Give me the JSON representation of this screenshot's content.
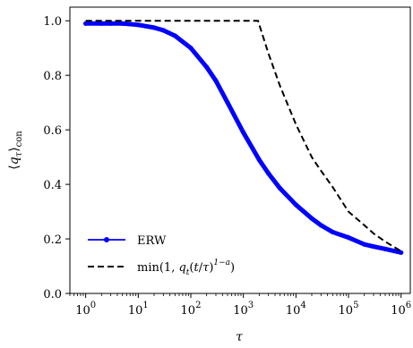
{
  "chart_data": {
    "type": "line",
    "xlabel": "τ",
    "ylabel": "⟨q_τ⟩_con",
    "xscale": "log",
    "xlim": [
      0.5,
      1500000
    ],
    "ylim": [
      0.0,
      1.05
    ],
    "x_ticks": [
      {
        "value": 1,
        "base": "10",
        "exp": "0"
      },
      {
        "value": 10,
        "base": "10",
        "exp": "1"
      },
      {
        "value": 100,
        "base": "10",
        "exp": "2"
      },
      {
        "value": 1000,
        "base": "10",
        "exp": "3"
      },
      {
        "value": 10000,
        "base": "10",
        "exp": "4"
      },
      {
        "value": 100000,
        "base": "10",
        "exp": "5"
      },
      {
        "value": 1000000,
        "base": "10",
        "exp": "6"
      }
    ],
    "y_ticks": [
      {
        "value": 0.0,
        "label": "0.0"
      },
      {
        "value": 0.2,
        "label": "0.2"
      },
      {
        "value": 0.4,
        "label": "0.4"
      },
      {
        "value": 0.6,
        "label": "0.6"
      },
      {
        "value": 0.8,
        "label": "0.8"
      },
      {
        "value": 1.0,
        "label": "1.0"
      }
    ],
    "legend_position": "lower-left",
    "series": [
      {
        "name": "ERW",
        "color": "#0000ff",
        "style": "solid-thick-with-markers",
        "x": [
          1,
          2,
          3,
          5,
          10,
          20,
          30,
          50,
          100,
          200,
          300,
          500,
          1000,
          2000,
          3000,
          5000,
          10000,
          20000,
          30000,
          50000,
          100000,
          200000,
          300000,
          500000,
          1000000
        ],
        "y": [
          0.99,
          0.99,
          0.99,
          0.99,
          0.985,
          0.975,
          0.965,
          0.945,
          0.9,
          0.83,
          0.78,
          0.7,
          0.59,
          0.49,
          0.44,
          0.385,
          0.325,
          0.275,
          0.25,
          0.225,
          0.205,
          0.18,
          0.172,
          0.163,
          0.15
        ]
      },
      {
        "name": "min(1, q_t(t/τ)^{1−a})",
        "color": "#000000",
        "style": "dashed",
        "x": [
          1,
          10,
          100,
          1000,
          1900,
          3000,
          5000,
          10000,
          20000,
          30000,
          50000,
          100000,
          200000,
          300000,
          500000,
          1000000
        ],
        "y": [
          1.0,
          1.0,
          1.0,
          1.0,
          1.0,
          0.88,
          0.76,
          0.62,
          0.5,
          0.45,
          0.39,
          0.3,
          0.25,
          0.22,
          0.19,
          0.155
        ]
      }
    ]
  }
}
